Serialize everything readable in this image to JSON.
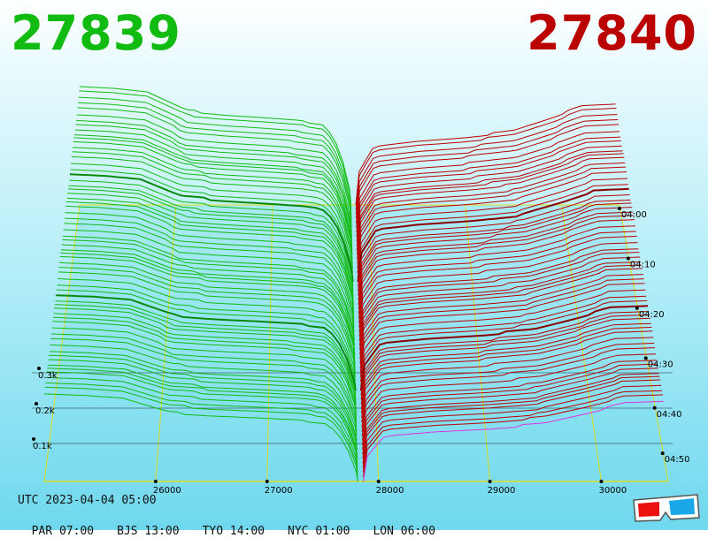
{
  "header": {
    "bid_price": "27839",
    "ask_price": "27840"
  },
  "colors": {
    "bid": "#11bb11",
    "ask": "#bb0000",
    "grid": "#dddd22",
    "highlight": "#dd33dd"
  },
  "footer": {
    "utc": "UTC 2023-04-04 05:00",
    "zones": [
      "PAR 07:00",
      "BJS 13:00",
      "TYO 14:00",
      "NYC 01:00",
      "LON 06:00"
    ]
  },
  "chart_data": {
    "type": "area",
    "subtype": "3d-depth-history",
    "mid_price": 27839.5,
    "x": {
      "ticks": [
        26000,
        27000,
        28000,
        29000,
        30000
      ],
      "tick_labels": [
        "26000",
        "27000",
        "28000",
        "29000",
        "30000"
      ],
      "range": [
        25000,
        30600
      ]
    },
    "z": {
      "tick_labels": [
        "0.1k",
        "0.2k",
        "0.3k"
      ],
      "ticks": [
        100,
        200,
        300
      ]
    },
    "time": {
      "tick_labels": [
        "04:00",
        "04:10",
        "04:20",
        "04:30",
        "04:40",
        "04:50"
      ]
    },
    "series": [
      {
        "side": "bid",
        "x": [
          25000,
          25350,
          25700,
          26100,
          26500,
          26900,
          27300,
          27550,
          27700,
          27800,
          27839
        ],
        "depth": [
          330,
          325,
          315,
          265,
          255,
          248,
          240,
          230,
          160,
          50,
          0
        ]
      },
      {
        "side": "ask",
        "x": [
          27840,
          27900,
          28050,
          28500,
          29000,
          29500,
          29900,
          30200,
          30600
        ],
        "depth": [
          0,
          90,
          160,
          175,
          185,
          200,
          235,
          265,
          270
        ]
      }
    ]
  }
}
